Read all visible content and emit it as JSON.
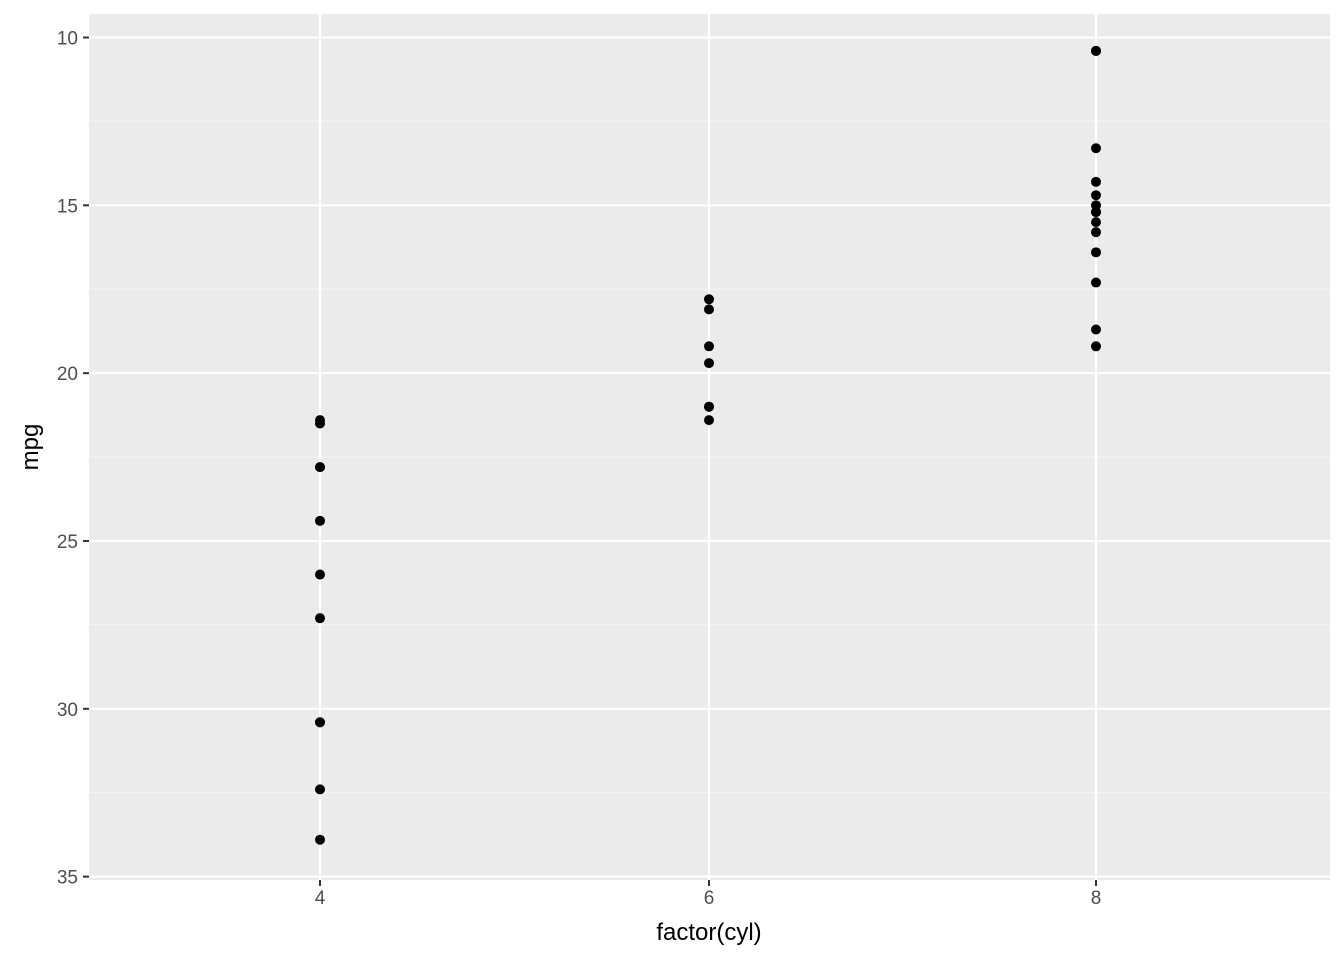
{
  "chart_data": {
    "type": "scatter",
    "title": "",
    "xlabel": "factor(cyl)",
    "ylabel": "mpg",
    "x_categories": [
      "4",
      "6",
      "8"
    ],
    "x_ticks": [
      "4",
      "6",
      "8"
    ],
    "y_ticks": [
      10,
      15,
      20,
      25,
      30,
      35
    ],
    "y_tick_labels": [
      "10",
      "15",
      "20",
      "25",
      "30",
      "35"
    ],
    "ylim": [
      9.3,
      35.1
    ],
    "y_reversed": true,
    "grid": true,
    "legend": "none",
    "series": [
      {
        "points": [
          {
            "x": "4",
            "y": 22.8
          },
          {
            "x": "4",
            "y": 24.4
          },
          {
            "x": "4",
            "y": 22.8
          },
          {
            "x": "4",
            "y": 32.4
          },
          {
            "x": "4",
            "y": 30.4
          },
          {
            "x": "4",
            "y": 33.9
          },
          {
            "x": "4",
            "y": 21.5
          },
          {
            "x": "4",
            "y": 27.3
          },
          {
            "x": "4",
            "y": 26.0
          },
          {
            "x": "4",
            "y": 30.4
          },
          {
            "x": "4",
            "y": 21.4
          },
          {
            "x": "6",
            "y": 21.0
          },
          {
            "x": "6",
            "y": 21.0
          },
          {
            "x": "6",
            "y": 21.4
          },
          {
            "x": "6",
            "y": 18.1
          },
          {
            "x": "6",
            "y": 19.2
          },
          {
            "x": "6",
            "y": 17.8
          },
          {
            "x": "6",
            "y": 19.7
          },
          {
            "x": "8",
            "y": 18.7
          },
          {
            "x": "8",
            "y": 14.3
          },
          {
            "x": "8",
            "y": 16.4
          },
          {
            "x": "8",
            "y": 17.3
          },
          {
            "x": "8",
            "y": 15.2
          },
          {
            "x": "8",
            "y": 10.4
          },
          {
            "x": "8",
            "y": 10.4
          },
          {
            "x": "8",
            "y": 14.7
          },
          {
            "x": "8",
            "y": 15.5
          },
          {
            "x": "8",
            "y": 15.2
          },
          {
            "x": "8",
            "y": 13.3
          },
          {
            "x": "8",
            "y": 19.2
          },
          {
            "x": "8",
            "y": 15.8
          },
          {
            "x": "8",
            "y": 15.0
          }
        ]
      }
    ]
  },
  "colors": {
    "panel_background": "#ebebeb",
    "grid_major": "#ffffff",
    "grid_minor": "#f5f5f5",
    "point": "#000000",
    "tick_text": "#4d4d4d",
    "tick_mark": "#333333",
    "axis_title": "#000000"
  }
}
